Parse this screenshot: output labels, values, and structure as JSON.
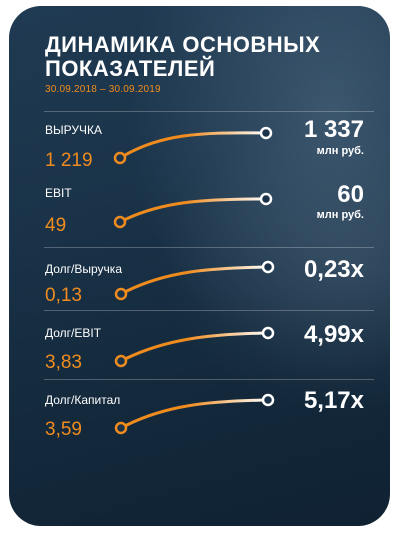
{
  "title": "ДИНАМИКА ОСНОВНЫХ ПОКАЗАТЕЛЕЙ",
  "period": "30.09.2018 – 30.09.2019",
  "colors": {
    "accent": "#f08c1e",
    "text": "#ffffff",
    "background": "#1a3349"
  },
  "metrics": [
    {
      "label": "ВЫРУЧКА",
      "old": "1 219",
      "new": "1 337",
      "unit": "млн руб."
    },
    {
      "label": "EBIT",
      "old": "49",
      "new": "60",
      "unit": "млн руб."
    },
    {
      "label": "Долг/Выручка",
      "old": "0,13",
      "new": "0,23x",
      "unit": ""
    },
    {
      "label": "Долг/EBIT",
      "old": "3,83",
      "new": "4,99x",
      "unit": ""
    },
    {
      "label": "Долг/Капитал",
      "old": "3,59",
      "new": "5,17x",
      "unit": ""
    }
  ]
}
